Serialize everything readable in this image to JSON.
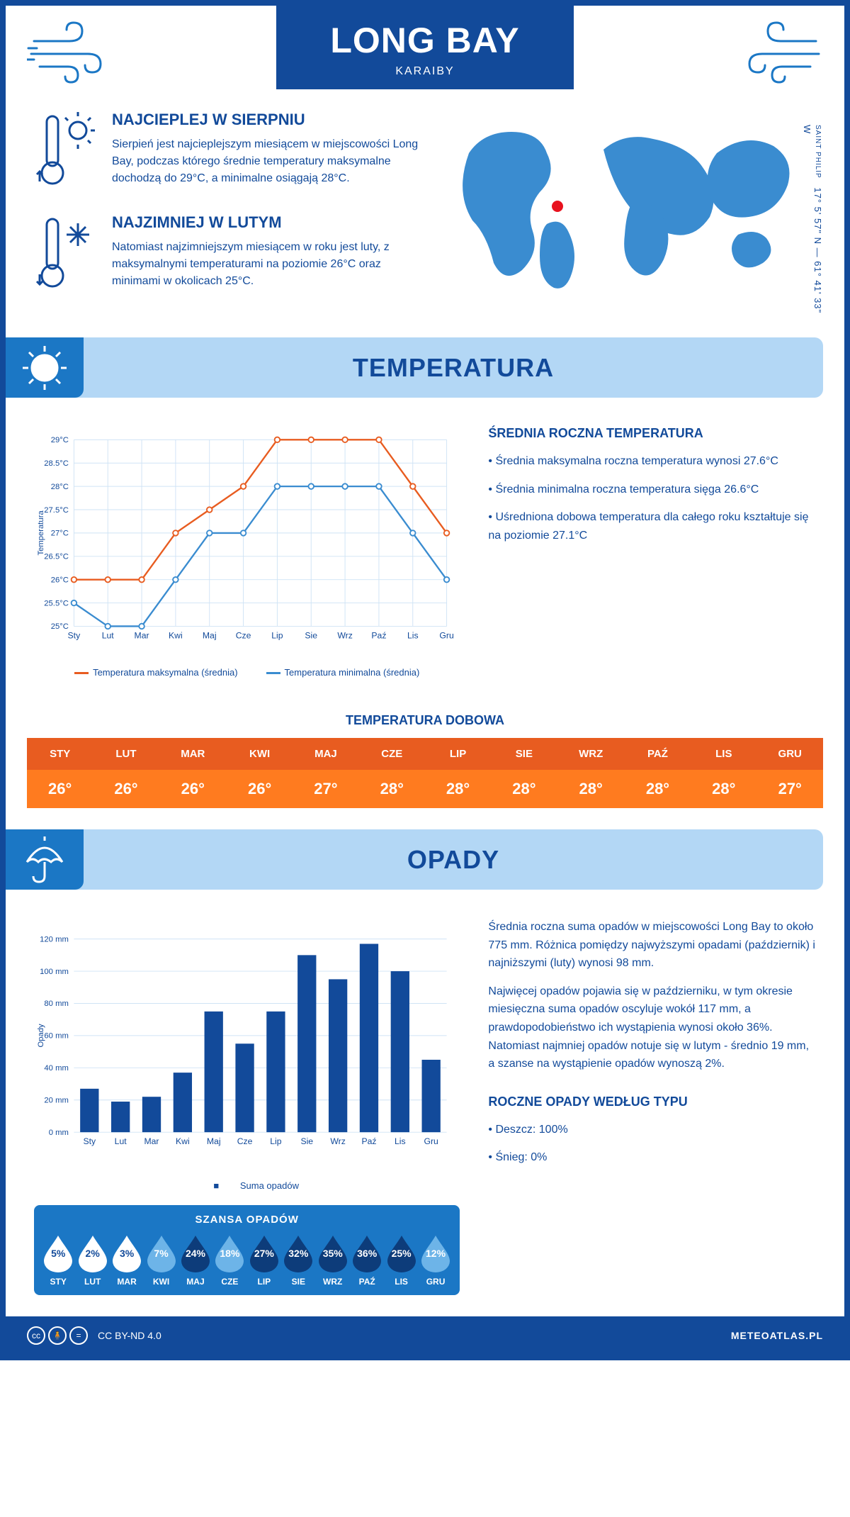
{
  "colors": {
    "primary": "#124a9a",
    "light_blue": "#b3d7f5",
    "mid_blue": "#1b77c5",
    "line_max": "#e85c20",
    "line_min": "#3a8cd0",
    "strip_head": "#e85c20",
    "strip_body": "#ff7b1f",
    "grid": "#cfe3f5"
  },
  "header": {
    "title": "LONG BAY",
    "subtitle": "KARAIBY"
  },
  "coords": {
    "region": "SAINT PHILIP",
    "text": "17° 5' 57\" N — 61° 41' 33\" W"
  },
  "intro": {
    "hot": {
      "title": "NAJCIEPLEJ W SIERPNIU",
      "text": "Sierpień jest najcieplejszym miesiącem w miejscowości Long Bay, podczas którego średnie temperatury maksymalne dochodzą do 29°C, a minimalne osiągają 28°C."
    },
    "cold": {
      "title": "NAJZIMNIEJ W LUTYM",
      "text": "Natomiast najzimniejszym miesiącem w roku jest luty, z maksymalnymi temperaturami na poziomie 26°C oraz minimami w okolicach 25°C."
    }
  },
  "months_short": [
    "Sty",
    "Lut",
    "Mar",
    "Kwi",
    "Maj",
    "Cze",
    "Lip",
    "Sie",
    "Wrz",
    "Paź",
    "Lis",
    "Gru"
  ],
  "months_upper": [
    "STY",
    "LUT",
    "MAR",
    "KWI",
    "MAJ",
    "CZE",
    "LIP",
    "SIE",
    "WRZ",
    "PAŹ",
    "LIS",
    "GRU"
  ],
  "temperature": {
    "section_title": "TEMPERATURA",
    "side": {
      "title": "ŚREDNIA ROCZNA TEMPERATURA",
      "bullets": [
        "Średnia maksymalna roczna temperatura wynosi 27.6°C",
        "Średnia minimalna roczna temperatura sięga 26.6°C",
        "Uśredniona dobowa temperatura dla całego roku kształtuje się na poziomie 27.1°C"
      ]
    },
    "chart": {
      "ylabel": "Temperatura",
      "ymin": 25,
      "ymax": 29,
      "ystep": 0.5,
      "yunit": "°C",
      "series_max": [
        26,
        26,
        26,
        27,
        27.5,
        28,
        29,
        29,
        29,
        29,
        28,
        27
      ],
      "series_min": [
        25.5,
        25,
        25,
        26,
        27,
        27,
        28,
        28,
        28,
        28,
        27,
        26
      ],
      "legend_max": "Temperatura maksymalna (średnia)",
      "legend_min": "Temperatura minimalna (średnia)"
    },
    "daily_title": "TEMPERATURA DOBOWA",
    "daily_values": [
      "26°",
      "26°",
      "26°",
      "26°",
      "27°",
      "28°",
      "28°",
      "28°",
      "28°",
      "28°",
      "28°",
      "27°"
    ]
  },
  "precip": {
    "section_title": "OPADY",
    "side": {
      "p1": "Średnia roczna suma opadów w miejscowości Long Bay to około 775 mm. Różnica pomiędzy najwyższymi opadami (październik) i najniższymi (luty) wynosi 98 mm.",
      "p2": "Najwięcej opadów pojawia się w październiku, w tym okresie miesięczna suma opadów oscyluje wokół 117 mm, a prawdopodobieństwo ich wystąpienia wynosi około 36%. Natomiast najmniej opadów notuje się w lutym - średnio 19 mm, a szanse na wystąpienie opadów wynoszą 2%.",
      "type_title": "ROCZNE OPADY WEDŁUG TYPU",
      "type_bullets": [
        "Deszcz: 100%",
        "Śnieg: 0%"
      ]
    },
    "chart": {
      "ylabel": "Opady",
      "ymin": 0,
      "ymax": 120,
      "ystep": 20,
      "yunit": " mm",
      "values": [
        27,
        19,
        22,
        37,
        75,
        55,
        75,
        110,
        95,
        117,
        100,
        45
      ],
      "bar_color": "#124a9a",
      "legend": "Suma opadów"
    },
    "chance": {
      "title": "SZANSA OPADÓW",
      "values": [
        5,
        2,
        3,
        7,
        24,
        18,
        27,
        32,
        35,
        36,
        25,
        12
      ]
    }
  },
  "footer": {
    "license": "CC BY-ND 4.0",
    "site": "METEOATLAS.PL"
  }
}
